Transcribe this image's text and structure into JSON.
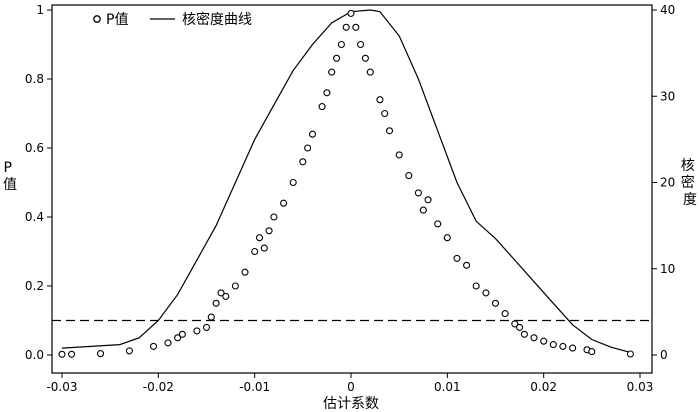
{
  "chart_data": {
    "type": "scatter",
    "xlabel": "估计系数",
    "ylabel_left": "P\n值",
    "ylabel_right": "核\n密\n度",
    "xlim": [
      -0.03,
      0.03
    ],
    "ylim_left": [
      0,
      1
    ],
    "ylim_right": [
      0,
      40
    ],
    "x_ticks": [
      "-0.03",
      "-0.02",
      "-0.01",
      "0",
      "0.01",
      "0.02",
      "0.03"
    ],
    "y_left_ticks": [
      "0.0",
      "0.2",
      "0.4",
      "0.6",
      "0.8",
      "1"
    ],
    "y_right_ticks": [
      "0",
      "10",
      "20",
      "30",
      "40"
    ],
    "threshold_line": {
      "y": 0.1,
      "style": "dashed"
    },
    "legend": {
      "position": "top-left",
      "items": [
        {
          "marker": "circle",
          "label": "P值"
        },
        {
          "marker": "line",
          "label": "核密度曲线"
        }
      ]
    },
    "series": [
      {
        "name": "P值",
        "kind": "scatter",
        "axis": "left",
        "points": [
          {
            "x": -0.03,
            "y": 0.002
          },
          {
            "x": -0.029,
            "y": 0.002
          },
          {
            "x": -0.026,
            "y": 0.004
          },
          {
            "x": -0.023,
            "y": 0.012
          },
          {
            "x": -0.0205,
            "y": 0.025
          },
          {
            "x": -0.019,
            "y": 0.035
          },
          {
            "x": -0.018,
            "y": 0.05
          },
          {
            "x": -0.0175,
            "y": 0.06
          },
          {
            "x": -0.016,
            "y": 0.07
          },
          {
            "x": -0.015,
            "y": 0.08
          },
          {
            "x": -0.0145,
            "y": 0.11
          },
          {
            "x": -0.014,
            "y": 0.15
          },
          {
            "x": -0.0135,
            "y": 0.18
          },
          {
            "x": -0.013,
            "y": 0.17
          },
          {
            "x": -0.012,
            "y": 0.2
          },
          {
            "x": -0.011,
            "y": 0.24
          },
          {
            "x": -0.01,
            "y": 0.3
          },
          {
            "x": -0.0095,
            "y": 0.34
          },
          {
            "x": -0.009,
            "y": 0.31
          },
          {
            "x": -0.0085,
            "y": 0.36
          },
          {
            "x": -0.008,
            "y": 0.4
          },
          {
            "x": -0.007,
            "y": 0.44
          },
          {
            "x": -0.006,
            "y": 0.5
          },
          {
            "x": -0.005,
            "y": 0.56
          },
          {
            "x": -0.0045,
            "y": 0.6
          },
          {
            "x": -0.004,
            "y": 0.64
          },
          {
            "x": -0.003,
            "y": 0.72
          },
          {
            "x": -0.0025,
            "y": 0.76
          },
          {
            "x": -0.002,
            "y": 0.82
          },
          {
            "x": -0.0015,
            "y": 0.86
          },
          {
            "x": -0.001,
            "y": 0.9
          },
          {
            "x": -0.0005,
            "y": 0.95
          },
          {
            "x": 0.0,
            "y": 0.99
          },
          {
            "x": 0.0005,
            "y": 0.95
          },
          {
            "x": 0.001,
            "y": 0.9
          },
          {
            "x": 0.0015,
            "y": 0.86
          },
          {
            "x": 0.002,
            "y": 0.82
          },
          {
            "x": 0.003,
            "y": 0.74
          },
          {
            "x": 0.0035,
            "y": 0.7
          },
          {
            "x": 0.004,
            "y": 0.65
          },
          {
            "x": 0.005,
            "y": 0.58
          },
          {
            "x": 0.006,
            "y": 0.52
          },
          {
            "x": 0.007,
            "y": 0.47
          },
          {
            "x": 0.0075,
            "y": 0.42
          },
          {
            "x": 0.008,
            "y": 0.45
          },
          {
            "x": 0.009,
            "y": 0.38
          },
          {
            "x": 0.01,
            "y": 0.34
          },
          {
            "x": 0.011,
            "y": 0.28
          },
          {
            "x": 0.012,
            "y": 0.26
          },
          {
            "x": 0.013,
            "y": 0.2
          },
          {
            "x": 0.014,
            "y": 0.18
          },
          {
            "x": 0.015,
            "y": 0.15
          },
          {
            "x": 0.016,
            "y": 0.12
          },
          {
            "x": 0.017,
            "y": 0.09
          },
          {
            "x": 0.0175,
            "y": 0.08
          },
          {
            "x": 0.018,
            "y": 0.06
          },
          {
            "x": 0.019,
            "y": 0.05
          },
          {
            "x": 0.02,
            "y": 0.04
          },
          {
            "x": 0.021,
            "y": 0.03
          },
          {
            "x": 0.022,
            "y": 0.025
          },
          {
            "x": 0.023,
            "y": 0.02
          },
          {
            "x": 0.0245,
            "y": 0.015
          },
          {
            "x": 0.025,
            "y": 0.01
          },
          {
            "x": 0.029,
            "y": 0.003
          }
        ]
      },
      {
        "name": "核密度曲线",
        "kind": "line",
        "axis": "right",
        "points": [
          {
            "x": -0.03,
            "y": 0.8
          },
          {
            "x": -0.027,
            "y": 1.0
          },
          {
            "x": -0.024,
            "y": 1.2
          },
          {
            "x": -0.022,
            "y": 2.0
          },
          {
            "x": -0.02,
            "y": 4.0
          },
          {
            "x": -0.018,
            "y": 7.0
          },
          {
            "x": -0.016,
            "y": 11.0
          },
          {
            "x": -0.014,
            "y": 15.0
          },
          {
            "x": -0.012,
            "y": 20.0
          },
          {
            "x": -0.01,
            "y": 25.0
          },
          {
            "x": -0.008,
            "y": 29.0
          },
          {
            "x": -0.006,
            "y": 33.0
          },
          {
            "x": -0.004,
            "y": 36.0
          },
          {
            "x": -0.002,
            "y": 38.5
          },
          {
            "x": 0.0,
            "y": 39.8
          },
          {
            "x": 0.002,
            "y": 40.0
          },
          {
            "x": 0.003,
            "y": 39.8
          },
          {
            "x": 0.005,
            "y": 37.0
          },
          {
            "x": 0.007,
            "y": 32.0
          },
          {
            "x": 0.009,
            "y": 26.0
          },
          {
            "x": 0.011,
            "y": 20.0
          },
          {
            "x": 0.013,
            "y": 15.5
          },
          {
            "x": 0.015,
            "y": 13.5
          },
          {
            "x": 0.017,
            "y": 11.0
          },
          {
            "x": 0.019,
            "y": 8.5
          },
          {
            "x": 0.021,
            "y": 6.0
          },
          {
            "x": 0.023,
            "y": 3.5
          },
          {
            "x": 0.025,
            "y": 1.8
          },
          {
            "x": 0.027,
            "y": 0.9
          },
          {
            "x": 0.029,
            "y": 0.3
          }
        ]
      }
    ]
  }
}
